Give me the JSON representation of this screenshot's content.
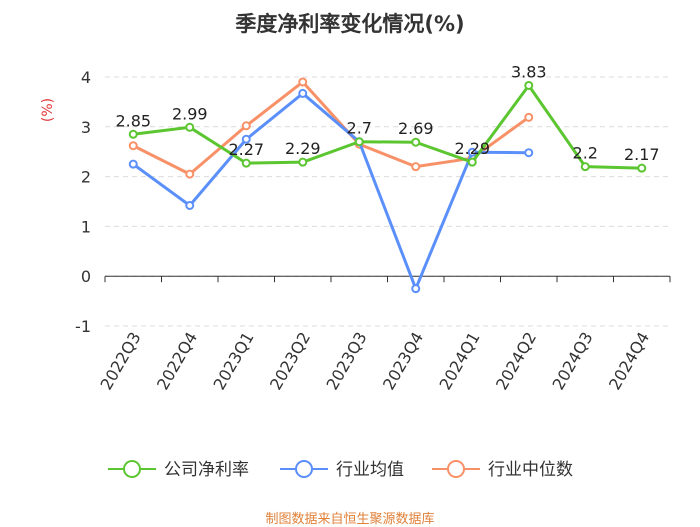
{
  "chart_data": {
    "type": "line",
    "title": "季度净利率变化情况(%)",
    "ylabel": "(%)",
    "ylim": [
      -1,
      4
    ],
    "yticks": [
      -1,
      0,
      1,
      2,
      3,
      4
    ],
    "grid": true,
    "legend_position": "bottom",
    "categories": [
      "2022Q3",
      "2022Q4",
      "2023Q1",
      "2023Q2",
      "2023Q3",
      "2023Q4",
      "2024Q1",
      "2024Q2",
      "2024Q3",
      "2024Q4"
    ],
    "series": [
      {
        "name": "公司净利率",
        "color": "#5cc631",
        "show_labels": true,
        "values": [
          2.85,
          2.99,
          2.27,
          2.29,
          2.7,
          2.69,
          2.29,
          3.83,
          2.2,
          2.17
        ]
      },
      {
        "name": "行业均值",
        "color": "#5b8ff9",
        "show_labels": false,
        "values": [
          2.25,
          1.42,
          2.75,
          3.67,
          2.7,
          -0.25,
          2.49,
          2.48,
          null,
          null
        ]
      },
      {
        "name": "行业中位数",
        "color": "#f89168",
        "show_labels": false,
        "values": [
          2.62,
          2.05,
          3.02,
          3.9,
          2.65,
          2.2,
          2.37,
          3.19,
          null,
          null
        ]
      }
    ]
  },
  "footer": {
    "source": "制图数据来自恒生聚源数据库"
  }
}
